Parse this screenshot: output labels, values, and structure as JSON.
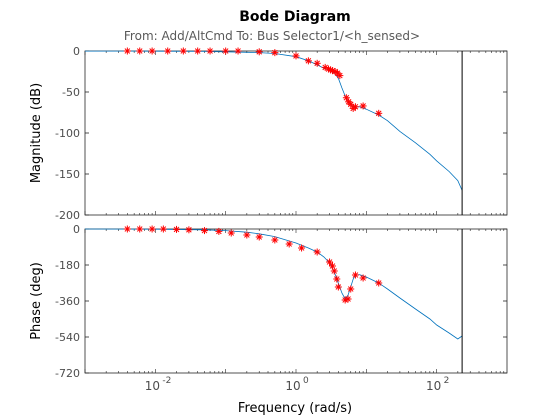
{
  "title": "Bode Diagram",
  "subtitle": "From: Add/AltCmd  To: Bus Selector1/<h_sensed>",
  "xlabel": "Frequency  (rad/s)",
  "colors": {
    "model": "#0072BD",
    "markers": "#ff0000",
    "axes": "#262626",
    "tick_text": "#4d4d4d"
  },
  "chart_data": [
    {
      "type": "line",
      "name": "magnitude",
      "ylabel": "Magnitude (dB)",
      "xscale": "log",
      "xlim": [
        0.001,
        1000
      ],
      "ylim": [
        -200,
        0
      ],
      "yticks": [
        0,
        -50,
        -100,
        -150,
        -200
      ],
      "xticks": [
        {
          "value": 0.01,
          "label": "10",
          "exp": "-2"
        },
        {
          "value": 1,
          "label": "10",
          "exp": "0"
        },
        {
          "value": 100,
          "label": "10",
          "exp": "2"
        }
      ],
      "vline_x": 230,
      "series": [
        {
          "style": "line",
          "x": [
            0.001,
            0.01,
            0.05,
            0.1,
            0.3,
            0.5,
            1,
            1.5,
            2,
            2.5,
            3,
            3.5,
            4,
            4.5,
            5,
            5.5,
            6,
            7,
            8,
            10,
            15,
            20,
            30,
            50,
            80,
            100,
            150,
            200,
            230
          ],
          "y": [
            -0.1,
            -0.2,
            -0.5,
            -1,
            -2,
            -3,
            -7,
            -12,
            -17,
            -21,
            -24,
            -27,
            -33,
            -45,
            -55,
            -62,
            -66,
            -68,
            -68,
            -71,
            -78,
            -85,
            -98,
            -112,
            -126,
            -134,
            -147,
            -158,
            -170
          ]
        },
        {
          "style": "marker",
          "x": [
            0.004,
            0.006,
            0.009,
            0.015,
            0.025,
            0.04,
            0.06,
            0.1,
            0.15,
            0.3,
            0.5,
            1,
            1.5,
            2,
            2.6,
            2.9,
            3.1,
            3.3,
            3.6,
            3.9,
            4.2,
            5.2,
            5.6,
            6.0,
            6.5,
            7.0,
            9.0,
            15
          ],
          "y": [
            0,
            0,
            0,
            0,
            0,
            0,
            0,
            0,
            0,
            -1,
            -2,
            -6,
            -12,
            -15,
            -20,
            -22,
            -23,
            -24,
            -25,
            -27,
            -30,
            -57,
            -62,
            -65,
            -70,
            -68,
            -67,
            -76
          ]
        }
      ]
    },
    {
      "type": "line",
      "name": "phase",
      "ylabel": "Phase (deg)",
      "xscale": "log",
      "xlim": [
        0.001,
        1000
      ],
      "ylim": [
        -720,
        0
      ],
      "yticks": [
        0,
        -180,
        -360,
        -540,
        -720
      ],
      "xticks": [
        {
          "value": 0.01,
          "label": "10",
          "exp": "-2"
        },
        {
          "value": 1,
          "label": "10",
          "exp": "0"
        },
        {
          "value": 100,
          "label": "10",
          "exp": "2"
        }
      ],
      "vline_x": 230,
      "series": [
        {
          "style": "line",
          "x": [
            0.001,
            0.01,
            0.05,
            0.1,
            0.2,
            0.3,
            0.5,
            1,
            1.5,
            2,
            2.5,
            3,
            3.5,
            4,
            4.5,
            5,
            5.5,
            6,
            6.5,
            7,
            8,
            10,
            15,
            20,
            30,
            50,
            80,
            100,
            150,
            200,
            230
          ],
          "y": [
            0,
            -1,
            -4,
            -8,
            -16,
            -24,
            -38,
            -70,
            -95,
            -115,
            -140,
            -170,
            -215,
            -270,
            -320,
            -350,
            -330,
            -290,
            -250,
            -230,
            -228,
            -240,
            -270,
            -300,
            -345,
            -400,
            -450,
            -480,
            -520,
            -550,
            -535
          ]
        },
        {
          "style": "marker",
          "x": [
            0.004,
            0.006,
            0.009,
            0.013,
            0.02,
            0.03,
            0.05,
            0.08,
            0.12,
            0.2,
            0.3,
            0.5,
            0.8,
            1.2,
            2,
            3,
            3.3,
            3.5,
            3.8,
            4.0,
            5.0,
            5.5,
            6.0,
            7.0,
            9.0,
            15
          ],
          "y": [
            0,
            0,
            0,
            0,
            -2,
            -4,
            -8,
            -12,
            -20,
            -30,
            -40,
            -55,
            -75,
            -95,
            -115,
            -165,
            -185,
            -210,
            -250,
            -290,
            -355,
            -350,
            -300,
            -230,
            -245,
            -270
          ]
        }
      ]
    }
  ]
}
